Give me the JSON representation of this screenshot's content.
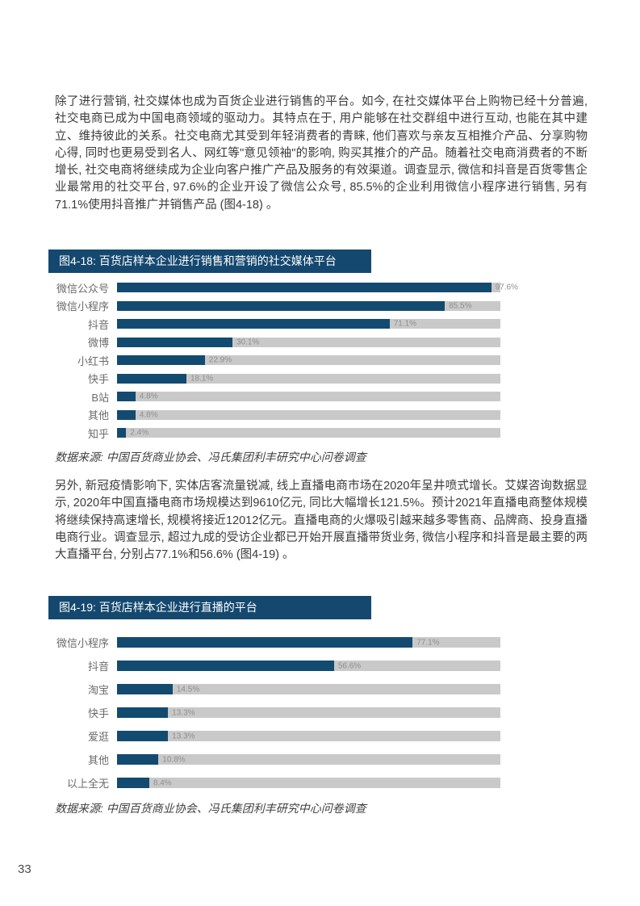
{
  "page": {
    "number": "33"
  },
  "paragraphs": {
    "p1": "除了进行营销, 社交媒体也成为百货企业进行销售的平台。如今, 在社交媒体平台上购物已经十分普遍, 社交电商已成为中国电商领域的驱动力。其特点在于, 用户能够在社交群组中进行互动, 也能在其中建立、维持彼此的关系。社交电商尤其受到年轻消费者的青睐, 他们喜欢与亲友互相推介产品、分享购物心得, 同时也更易受到名人、网红等\"意见领袖\"的影响, 购买其推介的产品。随着社交电商消费者的不断增长, 社交电商将继续成为企业向客户推广产品及服务的有效渠道。调查显示, 微信和抖音是百货零售企业最常用的社交平台, 97.6%的企业开设了微信公众号, 85.5%的企业利用微信小程序进行销售, 另有71.1%使用抖音推广并销售产品 (图4-18) 。",
    "p2": "另外, 新冠疫情影响下, 实体店客流量锐减, 线上直播电商市场在2020年呈井喷式增长。艾媒咨询数据显示, 2020年中国直播电商市场规模达到9610亿元, 同比大幅增长121.5%。预计2021年直播电商整体规模将继续保持高速增长, 规模将接近12012亿元。直播电商的火爆吸引越来越多零售商、品牌商、投身直播电商行业。调查显示, 超过九成的受访企业都已开始开展直播带货业务, 微信小程序和抖音是最主要的两大直播平台, 分别占77.1%和56.6% (图4-19) 。"
  },
  "figures": {
    "fig18": {
      "title": "图4-18: 百货店样本企业进行销售和营销的社交媒体平台",
      "source": "数据来源: 中国百货商业协会、冯氏集团利丰研究中心问卷调查"
    },
    "fig19": {
      "title": "图4-19: 百货店样本企业进行直播的平台",
      "source": "数据来源: 中国百货商业协会、冯氏集团利丰研究中心问卷调查"
    }
  },
  "colors": {
    "banner": "#15486F",
    "bar": "#134A70",
    "track": "#C9C9C9",
    "value_text": "#8F8F8F"
  },
  "chart_data": [
    {
      "type": "bar",
      "orientation": "horizontal",
      "title": "图4-18: 百货店样本企业进行销售和营销的社交媒体平台",
      "categories": [
        "微信公众号",
        "微信小程序",
        "抖音",
        "微博",
        "小红书",
        "快手",
        "B站",
        "其他",
        "知乎"
      ],
      "values": [
        97.6,
        85.5,
        71.1,
        30.1,
        22.9,
        18.1,
        4.8,
        4.8,
        2.4
      ],
      "value_labels": [
        "97.6%",
        "85.5%",
        "71.1%",
        "30.1%",
        "22.9%",
        "18.1%",
        "4.8%",
        "4.8%",
        "2.4%"
      ],
      "xlabel": "",
      "ylabel": "",
      "xlim": [
        0,
        100
      ],
      "grid": false,
      "legend": "none"
    },
    {
      "type": "bar",
      "orientation": "horizontal",
      "title": "图4-19: 百货店样本企业进行直播的平台",
      "categories": [
        "微信小程序",
        "抖音",
        "淘宝",
        "快手",
        "爱逛",
        "其他",
        "以上全无"
      ],
      "values": [
        77.1,
        56.6,
        14.5,
        13.3,
        13.3,
        10.8,
        8.4
      ],
      "value_labels": [
        "77.1%",
        "56.6%",
        "14.5%",
        "13.3%",
        "13.3%",
        "10.8%",
        "8.4%"
      ],
      "xlabel": "",
      "ylabel": "",
      "xlim": [
        0,
        100
      ],
      "grid": false,
      "legend": "none"
    }
  ]
}
